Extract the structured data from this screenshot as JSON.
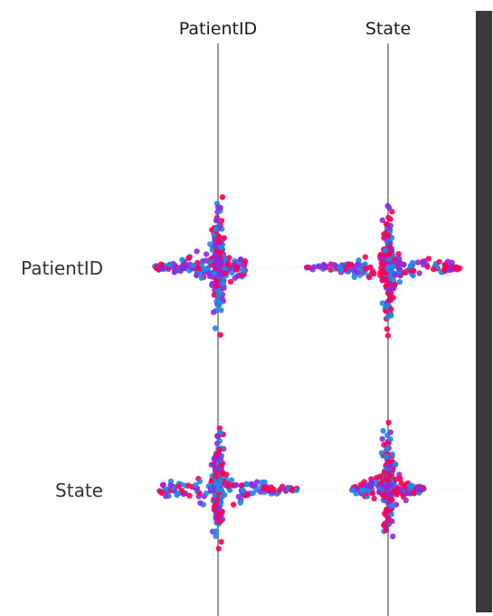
{
  "chart_data": {
    "type": "scatter",
    "columns": [
      "PatientID",
      "State"
    ],
    "rows": [
      "PatientID",
      "State"
    ],
    "colors": {
      "high": "#ff0052",
      "mid": "#8a2be2",
      "low": "#1e88e5",
      "axis": "#999999"
    },
    "panels": [
      {
        "row": "PatientID",
        "col": "PatientID",
        "x_range": [
          -70,
          30
        ],
        "y_spread": 95,
        "density": "up"
      },
      {
        "row": "PatientID",
        "col": "State",
        "x_range": [
          -90,
          80
        ],
        "y_spread": 95,
        "density": "both"
      },
      {
        "row": "State",
        "col": "PatientID",
        "x_range": [
          -65,
          88
        ],
        "y_spread": 95,
        "density": "up"
      },
      {
        "row": "State",
        "col": "State",
        "x_range": [
          -40,
          40
        ],
        "y_spread": 95,
        "density": "up"
      }
    ]
  }
}
